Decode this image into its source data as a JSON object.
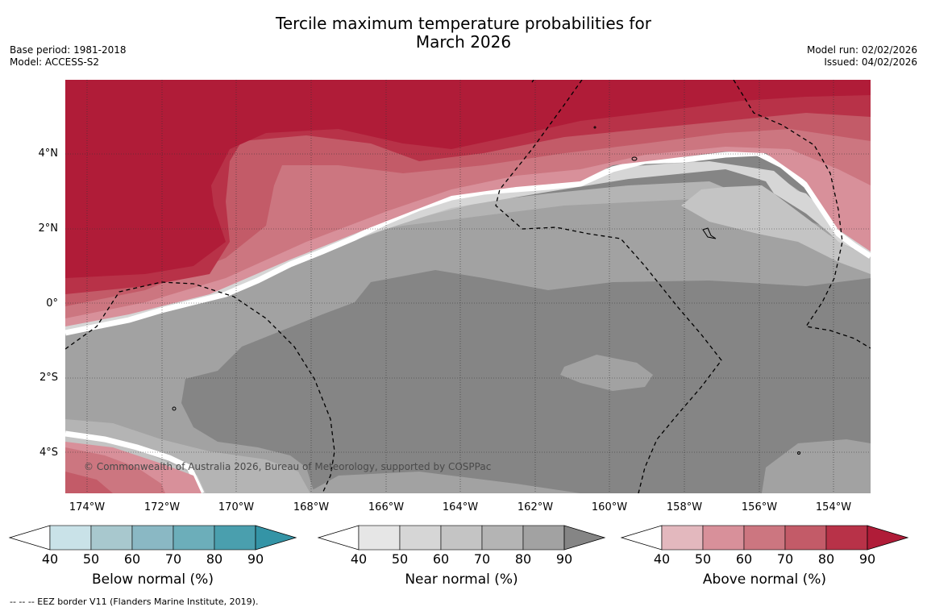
{
  "title_line1": "Tercile maximum temperature probabilities for",
  "title_line2": "March 2026",
  "base_period": "Base period: 1981-2018",
  "model": "Model: ACCESS-S2",
  "model_run": "Model run: 02/02/2026",
  "issued": "Issued: 04/02/2026",
  "lat_labels": [
    "4°N",
    "2°N",
    "0°",
    "2°S",
    "4°S"
  ],
  "lon_labels": [
    "174°W",
    "172°W",
    "170°W",
    "168°W",
    "166°W",
    "164°W",
    "162°W",
    "160°W",
    "158°W",
    "156°W",
    "154°W"
  ],
  "copyright": "© Commonwealth of Australia 2026, Bureau of Meteorology, supported by COSPPac",
  "footer": "--  --  -- EEZ border V11 (Flanders Marine Institute, 2019).",
  "colorbars": [
    {
      "label": "Below normal (%)",
      "ticks": [
        "40",
        "50",
        "60",
        "70",
        "80",
        "90"
      ],
      "colors": [
        "#c9e2e8",
        "#a8c8ce",
        "#8ab8c4",
        "#6caeba",
        "#4a9fae",
        "#3494a6"
      ]
    },
    {
      "label": "Near normal (%)",
      "ticks": [
        "40",
        "50",
        "60",
        "70",
        "80",
        "90"
      ],
      "colors": [
        "#e6e6e6",
        "#d6d6d6",
        "#c4c4c4",
        "#b4b4b4",
        "#a2a2a2",
        "#858585"
      ]
    },
    {
      "label": "Above normal (%)",
      "ticks": [
        "40",
        "50",
        "60",
        "70",
        "80",
        "90"
      ],
      "colors": [
        "#e3b8be",
        "#d8909a",
        "#cc7680",
        "#c35b68",
        "#b83248",
        "#b01c38"
      ]
    }
  ]
}
